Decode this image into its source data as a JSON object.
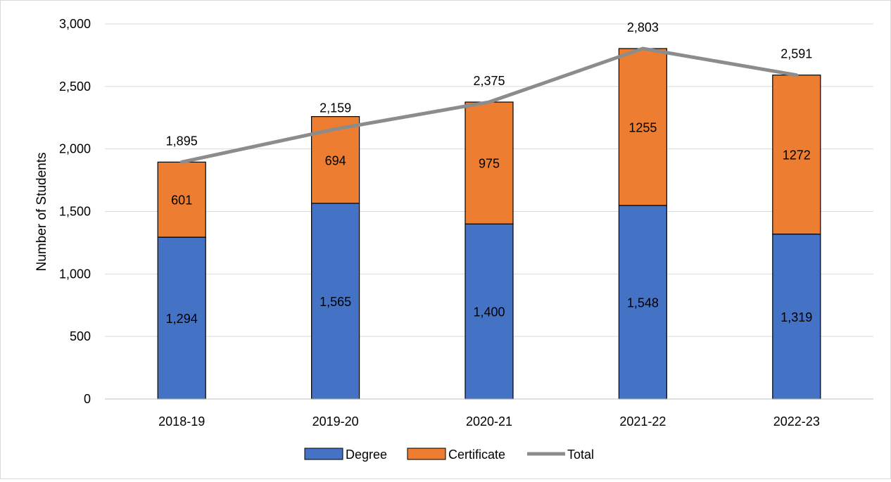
{
  "chart_data": {
    "type": "bar",
    "stacked": true,
    "categories": [
      "2018-19",
      "2019-20",
      "2020-21",
      "2021-22",
      "2022-23"
    ],
    "series": [
      {
        "name": "Degree",
        "kind": "bar",
        "color": "#4472c4",
        "values": [
          1294,
          1565,
          1400,
          1548,
          1319
        ],
        "labels": [
          "1,294",
          "1,565",
          "1,400",
          "1,548",
          "1,319"
        ]
      },
      {
        "name": "Certificate",
        "kind": "bar",
        "color": "#ed7d31",
        "values": [
          601,
          694,
          975,
          1255,
          1272
        ],
        "labels": [
          "601",
          "694",
          "975",
          "1255",
          "1272"
        ]
      },
      {
        "name": "Total",
        "kind": "line",
        "color": "#8c8c8c",
        "values": [
          1895,
          2159,
          2375,
          2803,
          2591
        ],
        "labels": [
          "1,895",
          "2,159",
          "2,375",
          "2,803",
          "2,591"
        ]
      }
    ],
    "title": "",
    "xlabel": "",
    "ylabel": "Number of Students",
    "ylim": [
      0,
      3000
    ],
    "yticks": [
      0,
      500,
      1000,
      1500,
      2000,
      2500,
      3000
    ],
    "ytick_labels": [
      "0",
      "500",
      "1,000",
      "1,500",
      "2,000",
      "2,500",
      "3,000"
    ],
    "grid": true,
    "legend_position": "bottom"
  }
}
